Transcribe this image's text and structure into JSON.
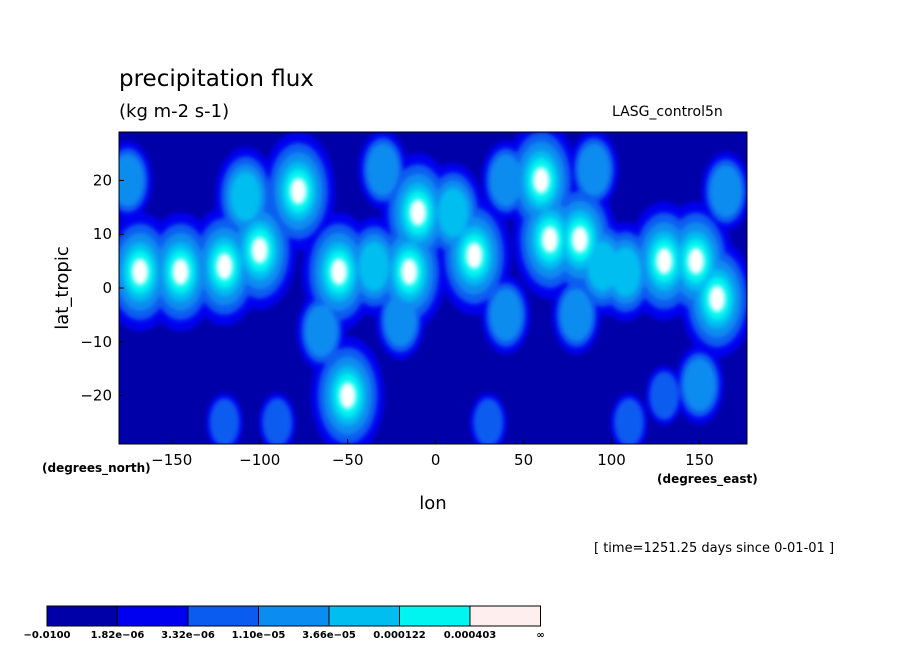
{
  "chart_data": {
    "type": "heatmap",
    "title": "precipitation flux",
    "units": "(kg m-2 s-1)",
    "dataset": "LASG_control5n",
    "time_note": "[ time=1251.25 days since 0-01-01 ]",
    "xlabel": "lon",
    "ylabel": "lat_tropic",
    "x_units": "(degrees_east)",
    "y_units": "(degrees_north)",
    "xlim": [
      -180,
      177
    ],
    "ylim": [
      -29,
      29
    ],
    "x_ticks": [
      -150,
      -100,
      -50,
      0,
      50,
      100,
      150
    ],
    "x_tick_labels": [
      "−150",
      "−100",
      "−50",
      "0",
      "50",
      "100",
      "150"
    ],
    "y_ticks": [
      20,
      10,
      0,
      -10,
      -20
    ],
    "y_tick_labels": [
      "20",
      "10",
      "0",
      "−10",
      "−20"
    ],
    "colorbar": {
      "colors": [
        "#0000a8",
        "#0000f0",
        "#0a5cf0",
        "#0a8cf0",
        "#00bef0",
        "#00f5f0",
        "#ffeeee"
      ],
      "labels": [
        "−0.0100",
        "1.82e−06",
        "3.32e−06",
        "1.10e−05",
        "3.66e−05",
        "0.000122",
        "0.000403",
        "∞"
      ]
    },
    "field_colors": {
      "background": "#0000a8",
      "level2": "#0000f0",
      "level3": "#0a5cf0",
      "level4": "#0a8cf0",
      "level5": "#00bef0",
      "level6": "#00f5f0",
      "peak": "#ffffff"
    },
    "features": [
      {
        "lon": -168,
        "lat": 3,
        "level": 6
      },
      {
        "lon": -145,
        "lat": 3,
        "level": 6
      },
      {
        "lon": -120,
        "lat": 4,
        "level": 6
      },
      {
        "lon": -100,
        "lat": 7,
        "level": 6
      },
      {
        "lon": -108,
        "lat": 17,
        "level": 5
      },
      {
        "lon": -78,
        "lat": 18,
        "level": 6
      },
      {
        "lon": -55,
        "lat": 3,
        "level": 6
      },
      {
        "lon": -35,
        "lat": 4,
        "level": 5
      },
      {
        "lon": -15,
        "lat": 3,
        "level": 6
      },
      {
        "lon": -10,
        "lat": 14,
        "level": 6
      },
      {
        "lon": 22,
        "lat": 6,
        "level": 6
      },
      {
        "lon": 10,
        "lat": 14,
        "level": 5
      },
      {
        "lon": 60,
        "lat": 20,
        "level": 6
      },
      {
        "lon": 65,
        "lat": 9,
        "level": 6
      },
      {
        "lon": 82,
        "lat": 9,
        "level": 6
      },
      {
        "lon": 95,
        "lat": 4,
        "level": 5
      },
      {
        "lon": 108,
        "lat": 3,
        "level": 5
      },
      {
        "lon": 130,
        "lat": 5,
        "level": 6
      },
      {
        "lon": 148,
        "lat": 5,
        "level": 6
      },
      {
        "lon": 160,
        "lat": -2,
        "level": 6
      },
      {
        "lon": -50,
        "lat": -20,
        "level": 6
      },
      {
        "lon": -65,
        "lat": -8,
        "level": 4
      },
      {
        "lon": -20,
        "lat": -6,
        "level": 4
      },
      {
        "lon": 80,
        "lat": -5,
        "level": 4
      },
      {
        "lon": 40,
        "lat": -5,
        "level": 4
      },
      {
        "lon": 150,
        "lat": -18,
        "level": 4
      },
      {
        "lon": 130,
        "lat": -20,
        "level": 3
      },
      {
        "lon": 90,
        "lat": 22,
        "level": 4
      },
      {
        "lon": 165,
        "lat": 18,
        "level": 4
      },
      {
        "lon": -30,
        "lat": 22,
        "level": 4
      },
      {
        "lon": 40,
        "lat": 20,
        "level": 4
      },
      {
        "lon": -175,
        "lat": 20,
        "level": 4
      },
      {
        "lon": -120,
        "lat": -25,
        "level": 3
      },
      {
        "lon": -90,
        "lat": -25,
        "level": 3
      },
      {
        "lon": 30,
        "lat": -25,
        "level": 3
      },
      {
        "lon": 110,
        "lat": -25,
        "level": 3
      }
    ]
  }
}
